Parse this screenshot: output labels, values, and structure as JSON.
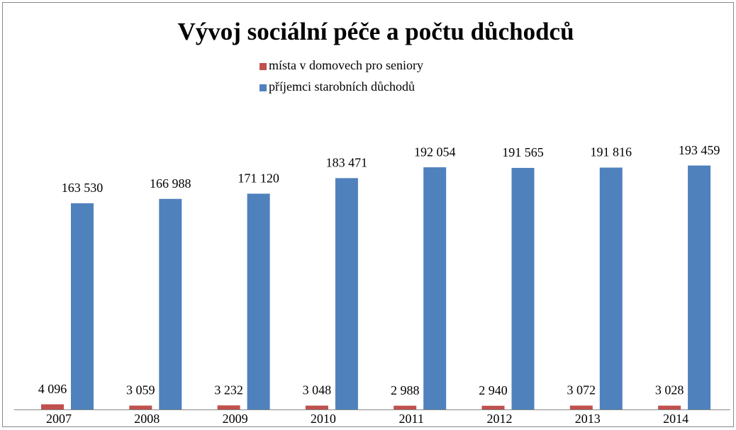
{
  "chart_data": {
    "type": "bar",
    "title": "Vývoj sociální péče a počtu důchodců",
    "categories": [
      "2007",
      "2008",
      "2009",
      "2010",
      "2011",
      "2012",
      "2013",
      "2014"
    ],
    "series": [
      {
        "name": "místa v domovech pro seniory",
        "color": "#c0504d",
        "values": [
          4096,
          3059,
          3232,
          3048,
          2988,
          2940,
          3072,
          3028
        ],
        "value_labels": [
          "4 096",
          "3 059",
          "3 232",
          "3 048",
          "2 988",
          "2 940",
          "3 072",
          "3 028"
        ]
      },
      {
        "name": "příjemci starobních důchodů",
        "color": "#4f81bd",
        "values": [
          163530,
          166988,
          171120,
          183471,
          192054,
          191565,
          191816,
          193459
        ],
        "value_labels": [
          "163 530",
          "166 988",
          "171 120",
          "183 471",
          "192 054",
          "191 565",
          "191 816",
          "193 459"
        ]
      }
    ],
    "ylim": [
      0,
      250000
    ],
    "legend": "top"
  }
}
